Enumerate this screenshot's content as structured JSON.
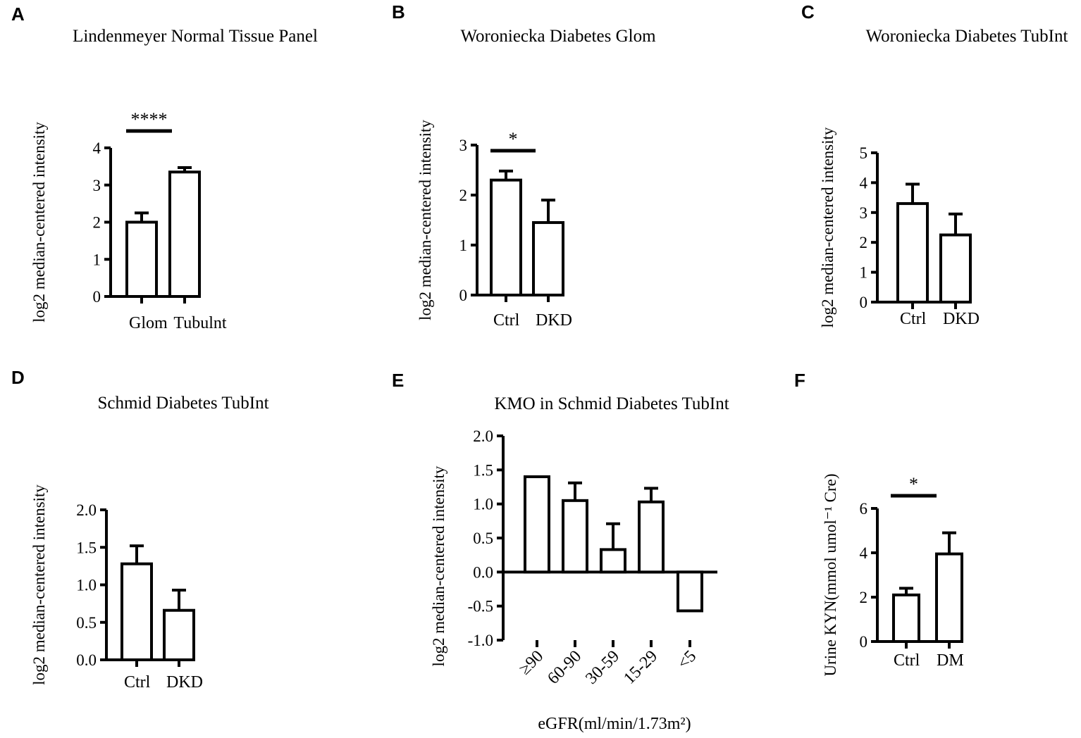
{
  "chart_data": [
    {
      "panel": "A",
      "type": "bar",
      "title": "Lindenmeyer Normal Tissue Panel",
      "ylabel": "log2 median-centered intensity",
      "xlabel": "",
      "categories": [
        "Glom",
        "Tubulnt"
      ],
      "values": [
        2.0,
        3.35
      ],
      "errors": [
        0.25,
        0.12
      ],
      "ylim": [
        0,
        4
      ],
      "yticks": [
        "0",
        "1",
        "2",
        "3",
        "4"
      ],
      "significance": "****"
    },
    {
      "panel": "B",
      "type": "bar",
      "title": "Woroniecka Diabetes Glom",
      "ylabel": "log2 median-centered intensity",
      "xlabel": "",
      "categories": [
        "Ctrl",
        "DKD"
      ],
      "values": [
        2.3,
        1.45
      ],
      "errors": [
        0.18,
        0.45
      ],
      "ylim": [
        0,
        3
      ],
      "yticks": [
        "0",
        "1",
        "2",
        "3"
      ],
      "significance": "*"
    },
    {
      "panel": "C",
      "type": "bar",
      "title": "Woroniecka Diabetes TubInt",
      "ylabel": "log2 median-centered intensity",
      "xlabel": "",
      "categories": [
        "Ctrl",
        "DKD"
      ],
      "values": [
        3.3,
        2.25
      ],
      "errors": [
        0.65,
        0.7
      ],
      "ylim": [
        0,
        5
      ],
      "yticks": [
        "0",
        "1",
        "2",
        "3",
        "4",
        "5"
      ],
      "significance": ""
    },
    {
      "panel": "D",
      "type": "bar",
      "title": "Schmid Diabetes TubInt",
      "ylabel": "log2 median-centered intensity",
      "xlabel": "",
      "categories": [
        "Ctrl",
        "DKD"
      ],
      "values": [
        1.28,
        0.66
      ],
      "errors": [
        0.24,
        0.27
      ],
      "ylim": [
        0,
        2
      ],
      "yticks": [
        "0.0",
        "0.5",
        "1.0",
        "1.5",
        "2.0"
      ],
      "significance": ""
    },
    {
      "panel": "E",
      "type": "bar",
      "title": "KMO in Schmid Diabetes TubInt",
      "ylabel": "log2 median-centered intensity",
      "xlabel": "eGFR(ml/min/1.73m²)",
      "categories": [
        "≥90",
        "60-90",
        "30-59",
        "15-29",
        "<5"
      ],
      "values": [
        1.4,
        1.05,
        0.33,
        1.03,
        -0.57
      ],
      "errors": [
        0.0,
        0.26,
        0.38,
        0.2,
        0.0
      ],
      "ylim": [
        -1,
        2
      ],
      "yticks": [
        "-1.0",
        "-0.5",
        "0.0",
        "0.5",
        "1.0",
        "1.5",
        "2.0"
      ],
      "significance": ""
    },
    {
      "panel": "F",
      "type": "bar",
      "title": "",
      "ylabel": "Urine KYN(mmol umol⁻¹ Cre)",
      "xlabel": "",
      "categories": [
        "Ctrl",
        "DM"
      ],
      "values": [
        2.1,
        3.95
      ],
      "errors": [
        0.3,
        0.95
      ],
      "ylim": [
        0,
        6
      ],
      "yticks": [
        "0",
        "2",
        "4",
        "6"
      ],
      "significance": "*"
    }
  ]
}
